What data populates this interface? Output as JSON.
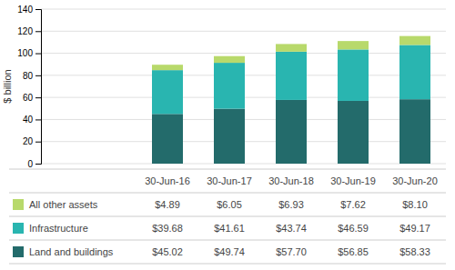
{
  "chart_data": {
    "type": "bar",
    "stacked": true,
    "categories": [
      "30-Jun-16",
      "30-Jun-17",
      "30-Jun-18",
      "30-Jun-19",
      "30-Jun-20"
    ],
    "series": [
      {
        "name": "Land and buildings",
        "color": "#236b6b",
        "values": [
          45.02,
          49.74,
          57.7,
          56.85,
          58.33
        ],
        "value_labels": [
          "$45.02",
          "$49.74",
          "$57.70",
          "$56.85",
          "$58.33"
        ]
      },
      {
        "name": "Infrastructure",
        "color": "#29b5b0",
        "values": [
          39.68,
          41.61,
          43.74,
          46.59,
          49.17
        ],
        "value_labels": [
          "$39.68",
          "$41.61",
          "$43.74",
          "$46.59",
          "$49.17"
        ]
      },
      {
        "name": "All other assets",
        "color": "#b8d96b",
        "values": [
          4.89,
          6.05,
          6.93,
          7.62,
          8.1
        ],
        "value_labels": [
          "$4.89",
          "$6.05",
          "$6.93",
          "$7.62",
          "$8.10"
        ]
      }
    ],
    "ylabel": "$ billion",
    "ylim": [
      0,
      140
    ],
    "yticks": [
      0,
      20,
      40,
      60,
      80,
      100,
      120,
      140
    ],
    "grid": true,
    "tick_labels": "y"
  }
}
